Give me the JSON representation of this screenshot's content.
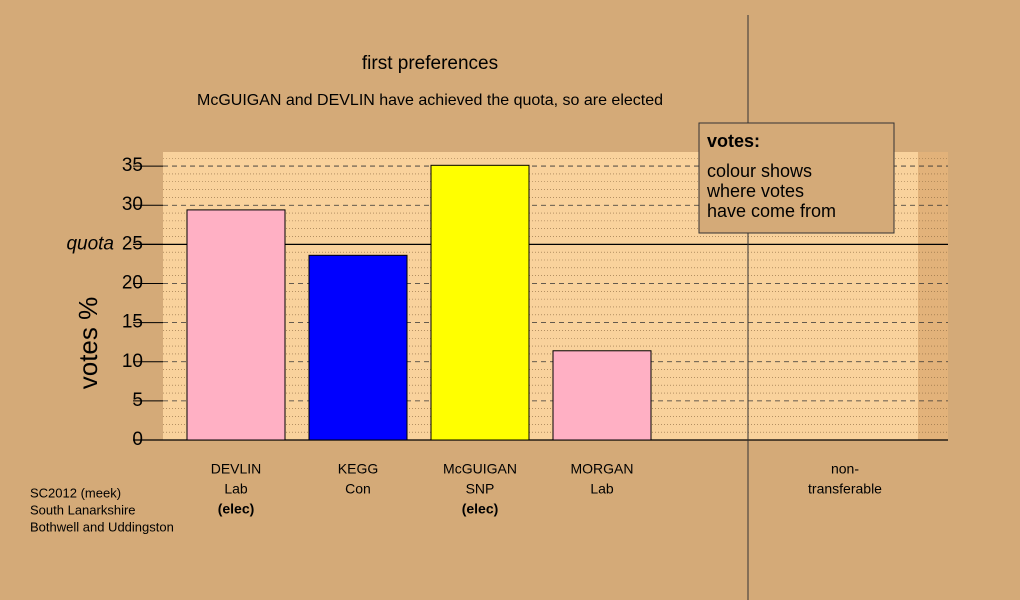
{
  "chart_data": {
    "type": "bar",
    "title": "first preferences",
    "subtitle": "McGUIGAN and DEVLIN have achieved the quota, so are elected",
    "y_label": "votes %",
    "categories": [
      "DEVLIN",
      "KEGG",
      "McGUIGAN",
      "MORGAN"
    ],
    "parties": [
      "Lab",
      "Con",
      "SNP",
      "Lab"
    ],
    "status": [
      "(elec)",
      null,
      "(elec)",
      null
    ],
    "values": [
      29.4,
      23.6,
      35.1,
      11.4
    ],
    "colors": [
      "#ffb0c4",
      "#0000ff",
      "#ffff00",
      "#ffb0c4"
    ],
    "non_transferable": [
      "non-",
      "transferable"
    ],
    "ylim": [
      0,
      36.8
    ],
    "yticks": [
      0,
      5,
      10,
      15,
      20,
      25,
      30,
      35
    ],
    "minor_yticks": [
      1,
      2,
      3,
      4,
      6,
      7,
      8,
      9,
      11,
      12,
      13,
      14,
      16,
      17,
      18,
      19,
      21,
      22,
      23,
      24,
      26,
      27,
      28,
      29,
      31,
      32,
      33,
      34,
      36
    ],
    "quota": {
      "value": 25,
      "label": "quota"
    },
    "grid": true,
    "legend": {
      "title": "votes:",
      "lines": [
        "colour shows",
        "where votes",
        "have come from"
      ]
    },
    "notes": [
      "SC2012 (meek)",
      "South Lanarkshire",
      "Bothwell and Uddingston"
    ]
  }
}
